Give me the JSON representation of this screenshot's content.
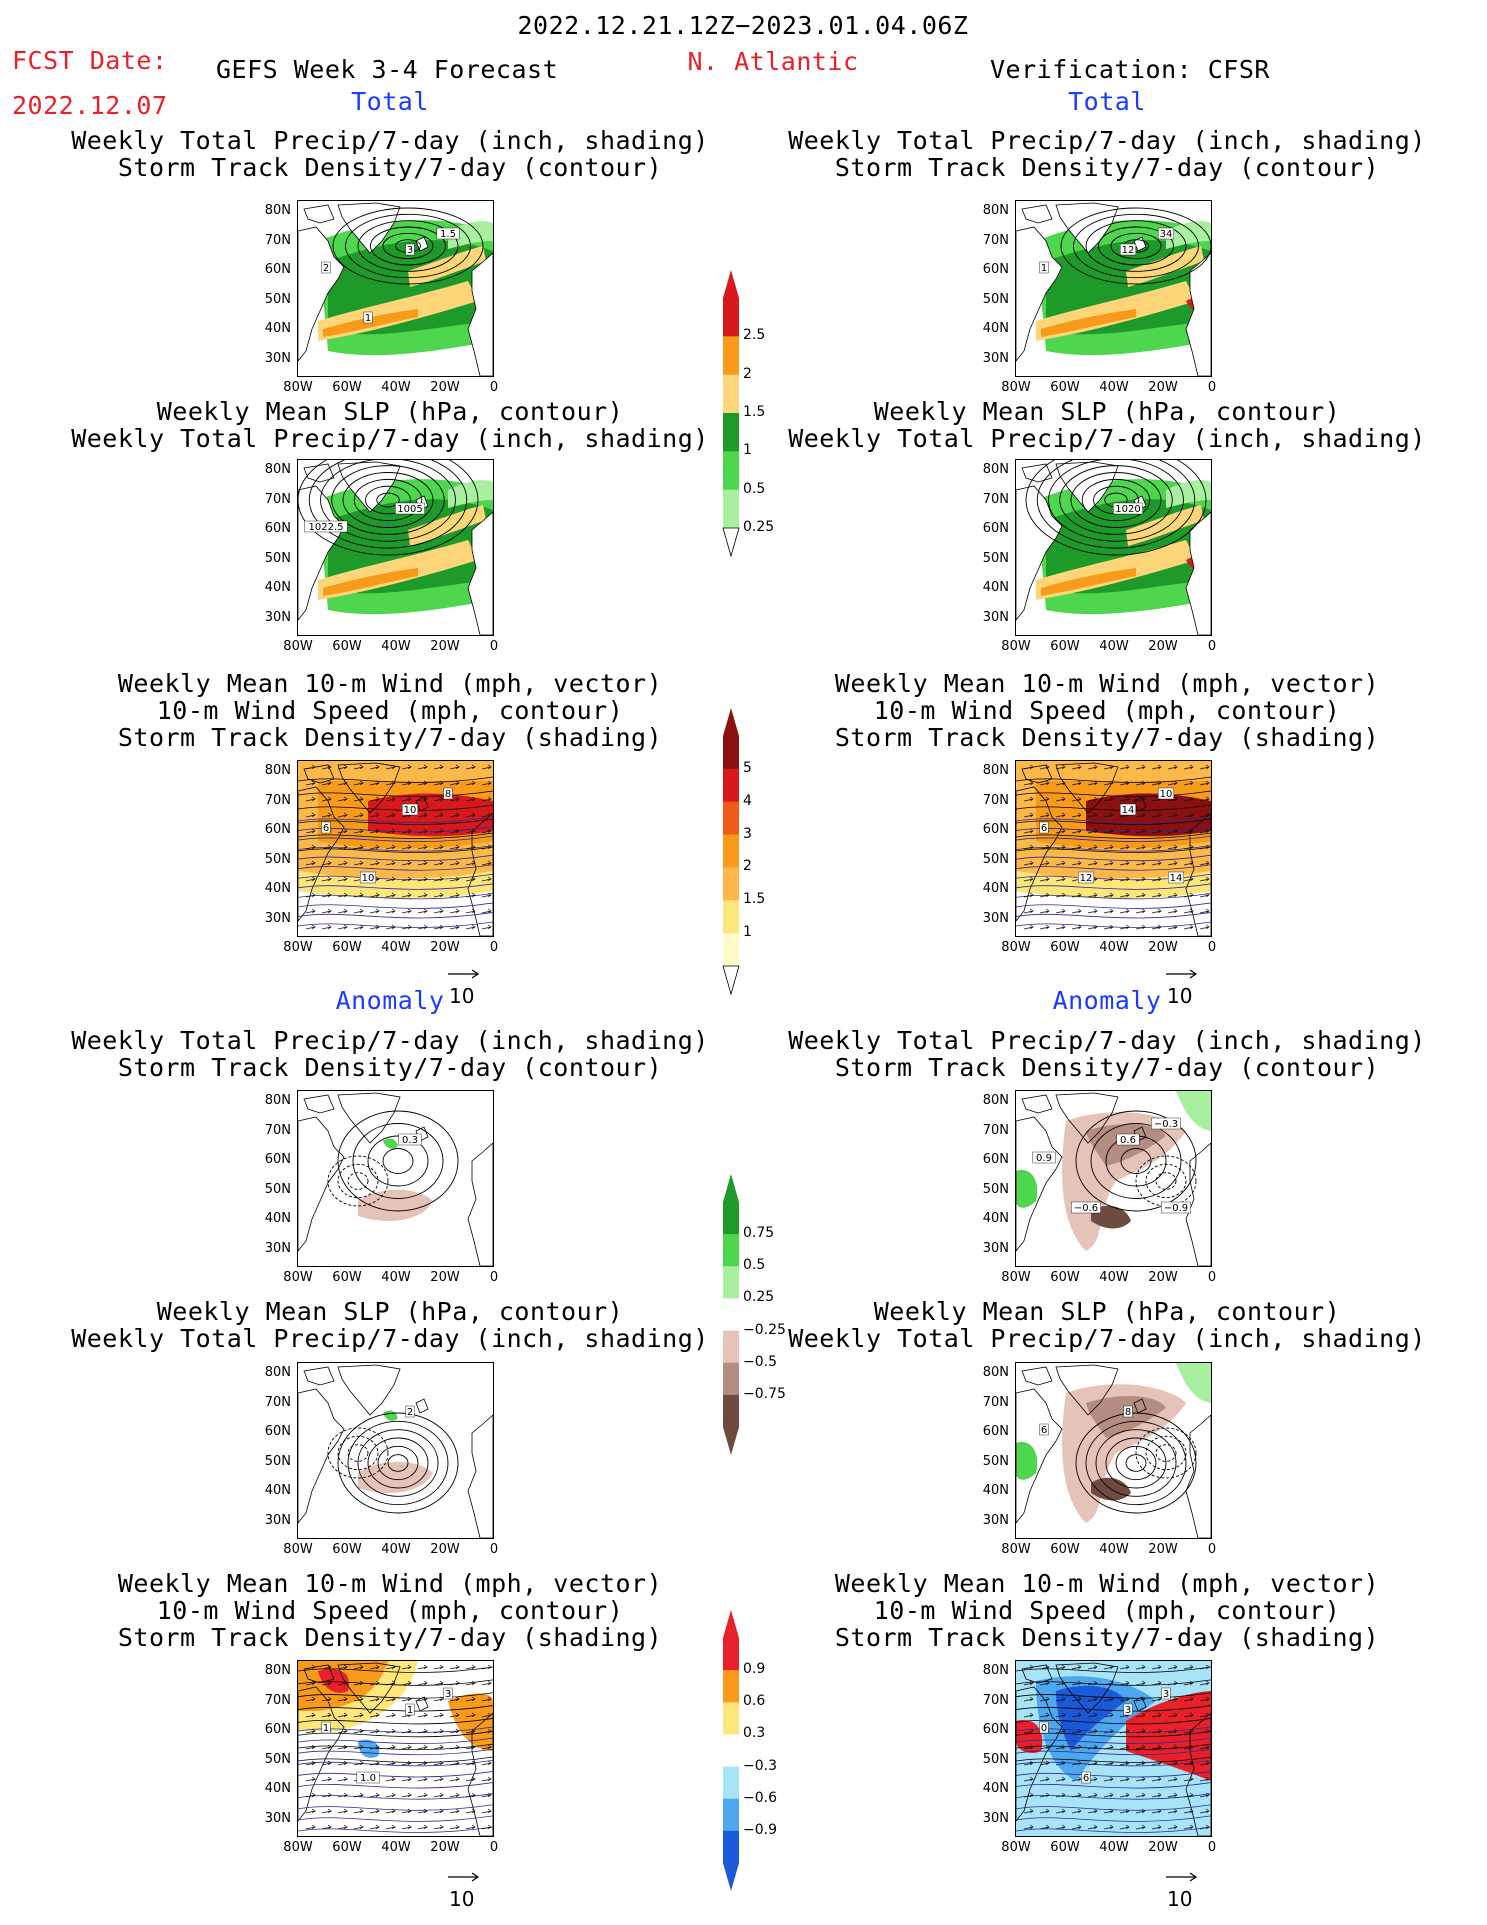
{
  "header": {
    "period": "2022.12.21.12Z−2023.01.04.06Z",
    "fcst_label": "FCST Date:",
    "fcst_date": "2022.12.07",
    "model": "GEFS Week 3-4 Forecast",
    "region": "N. Atlantic",
    "verification": "Verification: CFSR"
  },
  "sections": {
    "total": "Total",
    "anomaly": "Anomaly"
  },
  "titles": {
    "precip_storm": [
      "Weekly Total Precip/7-day (inch, shading)",
      "Storm Track Density/7-day (contour)"
    ],
    "slp_precip": [
      "Weekly Mean SLP (hPa, contour)",
      "Weekly Total Precip/7-day (inch, shading)"
    ],
    "wind": [
      "Weekly Mean 10-m Wind (mph, vector)",
      "10-m Wind Speed (mph, contour)",
      "Storm Track Density/7-day (shading)"
    ]
  },
  "axes": {
    "lat": [
      "80N",
      "70N",
      "60N",
      "50N",
      "40N",
      "30N"
    ],
    "lon": [
      "80W",
      "60W",
      "40W",
      "20W",
      "0"
    ]
  },
  "vector_ref": "10",
  "colorbars": {
    "total_precip": {
      "labels": [
        "2.5",
        "2",
        "1.5",
        "1",
        "0.5",
        "0.25"
      ],
      "colors": [
        "#d7191c",
        "#f89a1a",
        "#fdd67a",
        "#1e9a2a",
        "#4ed64e",
        "#a8f0a0"
      ]
    },
    "total_storm": {
      "labels": [
        "5",
        "4",
        "3",
        "2",
        "1.5",
        "1"
      ],
      "colors": [
        "#8c1010",
        "#d7191c",
        "#f05a1a",
        "#f89a1a",
        "#fdb84a",
        "#fde67a",
        "#fffbc8"
      ]
    },
    "anom_precip": {
      "labels": [
        "0.75",
        "0.5",
        "0.25",
        "−0.25",
        "−0.5",
        "−0.75"
      ],
      "colors": [
        "#1e9a2a",
        "#4ed64e",
        "#a8f0a0",
        "#ffffff",
        "#e5c3b8",
        "#b48c80",
        "#6e4a40"
      ]
    },
    "anom_storm": {
      "labels": [
        "0.9",
        "0.6",
        "0.3",
        "−0.3",
        "−0.6",
        "−0.9"
      ],
      "colors": [
        "#e8202a",
        "#f89a1a",
        "#fde67a",
        "#ffffff",
        "#a8e4f8",
        "#4ea8f0",
        "#1a5ad8"
      ]
    }
  },
  "map_labels": {
    "fp1": [
      "3",
      "2",
      "1.5",
      "1"
    ],
    "fp2": [
      "1005",
      "1022.5"
    ],
    "fw": [
      "10",
      "6",
      "8",
      "10"
    ],
    "vp1": [
      "12",
      "1",
      "34"
    ],
    "vp2": [
      "1020"
    ],
    "vw": [
      "14",
      "6",
      "10",
      "12",
      "14"
    ],
    "ap1": [
      "0.3"
    ],
    "ap2": [
      "2"
    ],
    "aw": [
      "1",
      "1",
      "3",
      "1.0"
    ],
    "bp1": [
      "0.6",
      "0.9",
      "−0.3",
      "−0.6",
      "−0.9"
    ],
    "bp2": [
      "8",
      "6"
    ],
    "bw": [
      "3",
      "0",
      "3",
      "6"
    ]
  }
}
